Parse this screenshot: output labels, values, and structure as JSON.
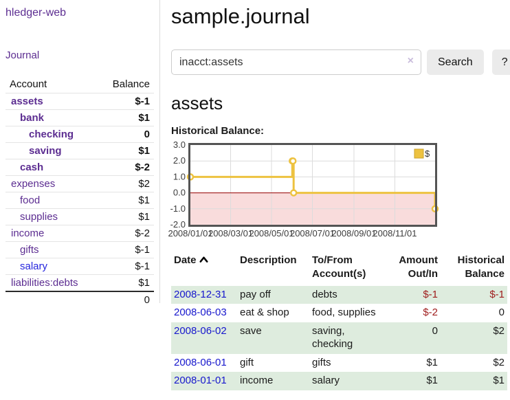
{
  "sidebar": {
    "app_title": "hledger-web",
    "journal_label": "Journal",
    "accounts_header": {
      "account": "Account",
      "balance": "Balance"
    },
    "accounts": [
      {
        "name": "assets",
        "indent": 1,
        "bold": true,
        "balance": "$-1",
        "balance_class": "neg-strong"
      },
      {
        "name": "bank",
        "indent": 2,
        "bold": true,
        "balance": "$1",
        "balance_class": ""
      },
      {
        "name": "checking",
        "indent": 3,
        "bold": true,
        "balance": "0",
        "balance_class": ""
      },
      {
        "name": "saving",
        "indent": 3,
        "bold": true,
        "balance": "$1",
        "balance_class": ""
      },
      {
        "name": "cash",
        "indent": 2,
        "bold": true,
        "balance": "$-2",
        "balance_class": "neg-strong"
      },
      {
        "name": "expenses",
        "indent": 1,
        "bold": false,
        "balance": "$2",
        "balance_class": ""
      },
      {
        "name": "food",
        "indent": 2,
        "bold": false,
        "balance": "$1",
        "balance_class": ""
      },
      {
        "name": "supplies",
        "indent": 2,
        "bold": false,
        "balance": "$1",
        "balance_class": ""
      },
      {
        "name": "income",
        "indent": 1,
        "bold": false,
        "balance": "$-2",
        "balance_class": "neg-light"
      },
      {
        "name": "gifts",
        "indent": 2,
        "bold": false,
        "balance": "$-1",
        "balance_class": "neg-light"
      },
      {
        "name": "salary",
        "indent": 2,
        "bold": false,
        "link_color": "blue",
        "balance": "$-1",
        "balance_class": "neg-light"
      },
      {
        "name": "liabilities:debts",
        "indent": 1,
        "bold": false,
        "balance": "$1",
        "balance_class": ""
      }
    ],
    "total": "0"
  },
  "header": {
    "title": "sample.journal"
  },
  "search": {
    "value": "inacct:assets",
    "placeholder": "",
    "button_label": "Search",
    "help_label": "?"
  },
  "icons": {
    "clear_search": "×",
    "sort_asc": "chevron-up"
  },
  "main": {
    "account_title": "assets",
    "chart_label": "Historical Balance:"
  },
  "chart_data": {
    "type": "line",
    "step": true,
    "title": "Historical Balance",
    "series": [
      {
        "name": "$",
        "color": "#EDC240",
        "points": [
          [
            "2008-01-01",
            1
          ],
          [
            "2008-06-01",
            2
          ],
          [
            "2008-06-02",
            2
          ],
          [
            "2008-06-03",
            0
          ],
          [
            "2008-12-31",
            -1
          ]
        ]
      }
    ],
    "x_range": [
      "2008-01-01",
      "2008-12-31"
    ],
    "x_ticks": [
      "2008/01/01",
      "2008/03/01",
      "2008/05/01",
      "2008/07/01",
      "2008/09/01",
      "2008/11/01"
    ],
    "y_ticks": [
      3.0,
      2.0,
      1.0,
      0.0,
      -1.0,
      -2.0
    ],
    "ylim": [
      -2,
      3
    ],
    "grid": true,
    "legend_position": "top-right",
    "negative_region_color": "#f9dcdc",
    "zero_line_color": "#990000",
    "grid_color": "#dcdcdc",
    "border_color": "#545454",
    "legend_box_border": "#c9a22e"
  },
  "register": {
    "columns": [
      {
        "l1": "Date",
        "l2": ""
      },
      {
        "l1": "Description",
        "l2": ""
      },
      {
        "l1": "To/From",
        "l2": "Account(s)"
      },
      {
        "l1": "Amount",
        "l2": "Out/In"
      },
      {
        "l1": "Historical",
        "l2": "Balance"
      }
    ],
    "rows": [
      {
        "date": "2008-12-31",
        "description": "pay off",
        "accounts": "debts",
        "amount": "$-1",
        "amount_class": "neg",
        "balance": "$-1",
        "balance_class": "neg"
      },
      {
        "date": "2008-06-03",
        "description": "eat & shop",
        "accounts": "food, supplies",
        "amount": "$-2",
        "amount_class": "neg",
        "balance": "0",
        "balance_class": ""
      },
      {
        "date": "2008-06-02",
        "description": "save",
        "accounts": "saving,\nchecking",
        "amount": "0",
        "amount_class": "",
        "balance": "$2",
        "balance_class": ""
      },
      {
        "date": "2008-06-01",
        "description": "gift",
        "accounts": "gifts",
        "amount": "$1",
        "amount_class": "",
        "balance": "$2",
        "balance_class": ""
      },
      {
        "date": "2008-01-01",
        "description": "income",
        "accounts": "salary",
        "amount": "$1",
        "amount_class": "",
        "balance": "$1",
        "balance_class": ""
      }
    ]
  }
}
